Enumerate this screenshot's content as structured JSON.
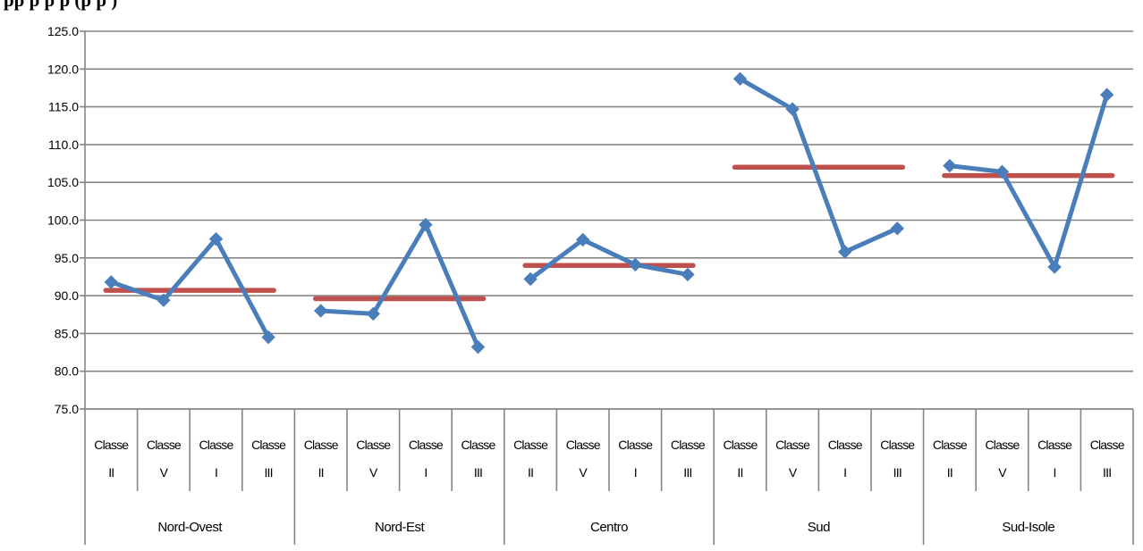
{
  "chart_data": {
    "type": "line",
    "title": "pp  p   p   p   (p   p   )",
    "ylim": [
      75,
      125
    ],
    "yticks": [
      75,
      80,
      85,
      90,
      95,
      100,
      105,
      110,
      115,
      120,
      125
    ],
    "grid": true,
    "groups": [
      {
        "name": "Nord-Ovest",
        "classes": [
          {
            "line1": "Classe",
            "line2": "II"
          },
          {
            "line1": "Classe",
            "line2": "V"
          },
          {
            "line1": "Classe",
            "line2": "I"
          },
          {
            "line1": "Classe",
            "line2": "III"
          }
        ],
        "values": [
          91.8,
          89.4,
          97.5,
          84.5
        ],
        "mean": 90.7
      },
      {
        "name": "Nord-Est",
        "classes": [
          {
            "line1": "Classe",
            "line2": "II"
          },
          {
            "line1": "Classe",
            "line2": "V"
          },
          {
            "line1": "Classe",
            "line2": "I"
          },
          {
            "line1": "Classe",
            "line2": "III"
          }
        ],
        "values": [
          88.0,
          87.6,
          99.4,
          83.2
        ],
        "mean": 89.6
      },
      {
        "name": "Centro",
        "classes": [
          {
            "line1": "Classe",
            "line2": "II"
          },
          {
            "line1": "Classe",
            "line2": "V"
          },
          {
            "line1": "Classe",
            "line2": "I"
          },
          {
            "line1": "Classe",
            "line2": "III"
          }
        ],
        "values": [
          92.2,
          97.4,
          94.1,
          92.8
        ],
        "mean": 94.0
      },
      {
        "name": "Sud",
        "classes": [
          {
            "line1": "Classe",
            "line2": "II"
          },
          {
            "line1": "Classe",
            "line2": "V"
          },
          {
            "line1": "Classe",
            "line2": "I"
          },
          {
            "line1": "Classe",
            "line2": "III"
          }
        ],
        "values": [
          118.7,
          114.7,
          95.8,
          98.9
        ],
        "mean": 107.0
      },
      {
        "name": "Sud-Isole",
        "classes": [
          {
            "line1": "Classe",
            "line2": "II"
          },
          {
            "line1": "Classe",
            "line2": "V"
          },
          {
            "line1": "Classe",
            "line2": "I"
          },
          {
            "line1": "Classe",
            "line2": "III"
          }
        ],
        "values": [
          107.2,
          106.4,
          93.8,
          116.6
        ],
        "mean": 105.9
      }
    ],
    "colors": {
      "series": "#4a7ebb",
      "mean": "#c0504d",
      "grid": "#868686",
      "axis": "#868686"
    }
  }
}
